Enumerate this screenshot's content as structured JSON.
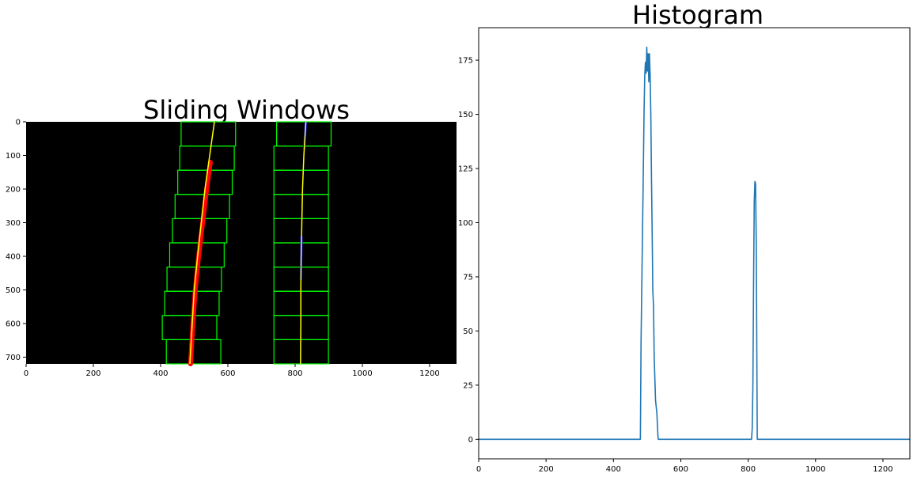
{
  "chart_data": [
    {
      "type": "image",
      "title": "Sliding Windows",
      "xlim": [
        0,
        1280
      ],
      "ylim": [
        720,
        0
      ],
      "xticks": [
        0,
        200,
        400,
        600,
        800,
        1000,
        1200
      ],
      "yticks": [
        0,
        100,
        200,
        300,
        400,
        500,
        600,
        700
      ],
      "background_color": "#000000",
      "window_color": "#00ff00",
      "fit_color": "#ffff00",
      "left_pixels_color": "#ff0000",
      "right_pixels_color": "#0000ff",
      "left_windows": [
        {
          "x1": 461,
          "x2": 623,
          "y1": 0,
          "y2": 72
        },
        {
          "x1": 457,
          "x2": 619,
          "y1": 72,
          "y2": 144
        },
        {
          "x1": 451,
          "x2": 613,
          "y1": 144,
          "y2": 216
        },
        {
          "x1": 443,
          "x2": 605,
          "y1": 216,
          "y2": 288
        },
        {
          "x1": 435,
          "x2": 597,
          "y1": 288,
          "y2": 360
        },
        {
          "x1": 427,
          "x2": 589,
          "y1": 360,
          "y2": 432
        },
        {
          "x1": 419,
          "x2": 581,
          "y1": 432,
          "y2": 504
        },
        {
          "x1": 412,
          "x2": 574,
          "y1": 504,
          "y2": 576
        },
        {
          "x1": 405,
          "x2": 567,
          "y1": 576,
          "y2": 648
        },
        {
          "x1": 417,
          "x2": 579,
          "y1": 648,
          "y2": 720
        }
      ],
      "right_windows": [
        {
          "x1": 745,
          "x2": 907,
          "y1": 0,
          "y2": 72
        },
        {
          "x1": 737,
          "x2": 899,
          "y1": 72,
          "y2": 144
        },
        {
          "x1": 737,
          "x2": 899,
          "y1": 144,
          "y2": 216
        },
        {
          "x1": 737,
          "x2": 899,
          "y1": 216,
          "y2": 288
        },
        {
          "x1": 737,
          "x2": 899,
          "y1": 288,
          "y2": 360
        },
        {
          "x1": 737,
          "x2": 899,
          "y1": 360,
          "y2": 432
        },
        {
          "x1": 737,
          "x2": 899,
          "y1": 432,
          "y2": 504
        },
        {
          "x1": 737,
          "x2": 899,
          "y1": 504,
          "y2": 576
        },
        {
          "x1": 737,
          "x2": 899,
          "y1": 576,
          "y2": 648
        },
        {
          "x1": 737,
          "x2": 899,
          "y1": 648,
          "y2": 720
        }
      ],
      "left_fit": {
        "y": [
          0,
          100,
          200,
          300,
          400,
          500,
          600,
          720
        ],
        "x": [
          560,
          546,
          532,
          521,
          510,
          500,
          494,
          487
        ]
      },
      "right_fit": {
        "y": [
          0,
          100,
          200,
          300,
          400,
          500,
          600,
          720
        ],
        "x": [
          832,
          826,
          822,
          820,
          818,
          817,
          817,
          816
        ]
      },
      "left_pixels": {
        "y": [
          120,
          200,
          300,
          400,
          500,
          600,
          720
        ],
        "x": [
          548,
          537,
          525,
          513,
          503,
          496,
          489
        ]
      },
      "right_pixels_segments": [
        {
          "y": [
            0,
            80
          ],
          "x": [
            832,
            827
          ]
        },
        {
          "y": [
            340,
            470
          ],
          "x": [
            819,
            817
          ]
        }
      ]
    },
    {
      "type": "line",
      "title": "Histogram",
      "xlim": [
        0,
        1280
      ],
      "ylim": [
        -9,
        190
      ],
      "xticks": [
        0,
        200,
        400,
        600,
        800,
        1000,
        1200
      ],
      "yticks": [
        0,
        25,
        50,
        75,
        100,
        125,
        150,
        175
      ],
      "grid": false,
      "series_color": "#1f77b4",
      "x": [
        0,
        480,
        482,
        485,
        488,
        491,
        493,
        495,
        497,
        499,
        501,
        503,
        505,
        507,
        509,
        511,
        513,
        515,
        517,
        519,
        521,
        523,
        525,
        527,
        529,
        532,
        533,
        810,
        812,
        814,
        816,
        818,
        820,
        822,
        824,
        826,
        827,
        1280
      ],
      "y": [
        0,
        0,
        45,
        80,
        115,
        152,
        168,
        174,
        169,
        181,
        170,
        178,
        165,
        178,
        168,
        150,
        120,
        95,
        68,
        62,
        38,
        28,
        18,
        15,
        12,
        2,
        0,
        0,
        5,
        25,
        72,
        110,
        119,
        118,
        90,
        30,
        0,
        0
      ]
    }
  ]
}
